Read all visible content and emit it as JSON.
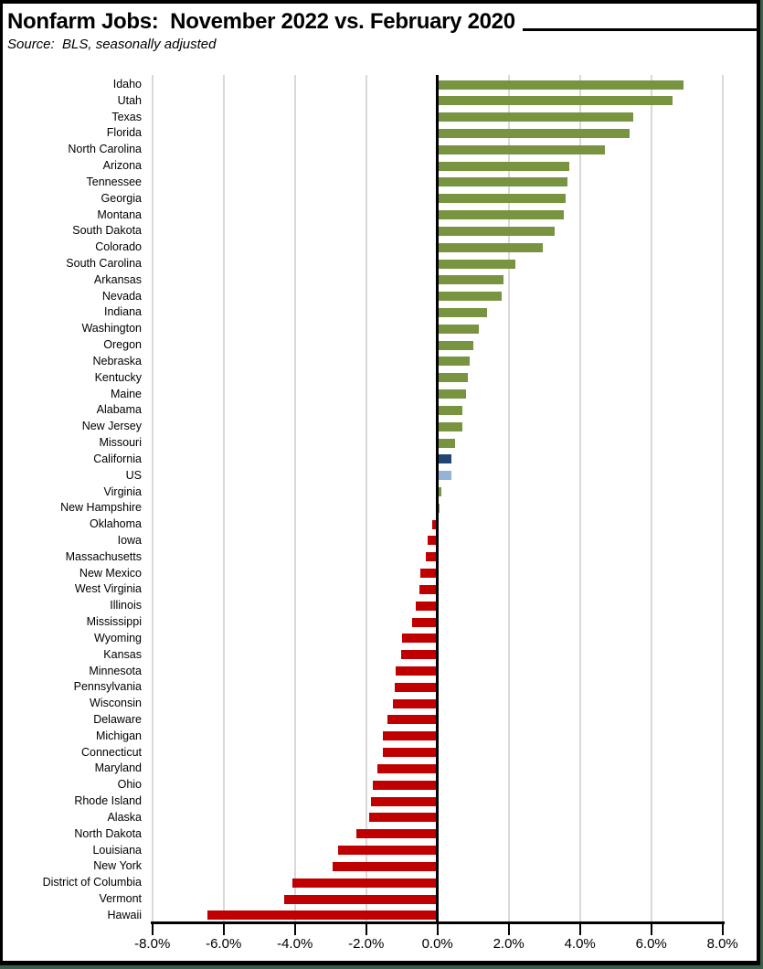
{
  "header": {
    "title": "Nonfarm Jobs:  November 2022 vs. February 2020",
    "source": "Source:  BLS, seasonally adjusted"
  },
  "frame": {
    "border_color": "#000000",
    "edge_color": "#39604A"
  },
  "chart_data": {
    "type": "bar",
    "orientation": "horizontal",
    "title": "Nonfarm Jobs:  November 2022 vs. February 2020",
    "subtitle": "Source:  BLS, seasonally adjusted",
    "unit": "percent change",
    "axis": {
      "min": -8,
      "max": 8,
      "tick_step": 2,
      "tick_labels": [
        "-8.0%",
        "-6.0%",
        "-4.0%",
        "-2.0%",
        "0.0%",
        "2.0%",
        "4.0%",
        "6.0%",
        "8.0%"
      ],
      "grid": true
    },
    "colors": {
      "positive": "#789440",
      "negative": "#C00000",
      "gridline": "#D9D9D9",
      "axis": "#000000"
    },
    "items": [
      {
        "label": "Idaho",
        "value": 6.9
      },
      {
        "label": "Utah",
        "value": 6.6
      },
      {
        "label": "Texas",
        "value": 5.5
      },
      {
        "label": "Florida",
        "value": 5.4
      },
      {
        "label": "North Carolina",
        "value": 4.7
      },
      {
        "label": "Arizona",
        "value": 3.7
      },
      {
        "label": "Tennessee",
        "value": 3.65
      },
      {
        "label": "Georgia",
        "value": 3.6
      },
      {
        "label": "Montana",
        "value": 3.55
      },
      {
        "label": "South Dakota",
        "value": 3.3
      },
      {
        "label": "Colorado",
        "value": 2.95
      },
      {
        "label": "South Carolina",
        "value": 2.2
      },
      {
        "label": "Arkansas",
        "value": 1.85
      },
      {
        "label": "Nevada",
        "value": 1.8
      },
      {
        "label": "Indiana",
        "value": 1.4
      },
      {
        "label": "Washington",
        "value": 1.15
      },
      {
        "label": "Oregon",
        "value": 1.0
      },
      {
        "label": "Nebraska",
        "value": 0.9
      },
      {
        "label": "Kentucky",
        "value": 0.85
      },
      {
        "label": "Maine",
        "value": 0.8
      },
      {
        "label": "Alabama",
        "value": 0.7
      },
      {
        "label": "New Jersey",
        "value": 0.7
      },
      {
        "label": "Missouri",
        "value": 0.5
      },
      {
        "label": "California",
        "value": 0.4,
        "color": "#1F4571"
      },
      {
        "label": "US",
        "value": 0.38,
        "color": "#95B3D7"
      },
      {
        "label": "Virginia",
        "value": 0.1
      },
      {
        "label": "New Hampshire",
        "value": 0.05
      },
      {
        "label": "Oklahoma",
        "value": -0.15
      },
      {
        "label": "Iowa",
        "value": -0.28
      },
      {
        "label": "Massachusetts",
        "value": -0.32
      },
      {
        "label": "New Mexico",
        "value": -0.47
      },
      {
        "label": "West Virginia",
        "value": -0.5
      },
      {
        "label": "Illinois",
        "value": -0.62
      },
      {
        "label": "Mississippi",
        "value": -0.7
      },
      {
        "label": "Wyoming",
        "value": -1.0
      },
      {
        "label": "Kansas",
        "value": -1.03
      },
      {
        "label": "Minnesota",
        "value": -1.18
      },
      {
        "label": "Pennsylvania",
        "value": -1.21
      },
      {
        "label": "Wisconsin",
        "value": -1.24
      },
      {
        "label": "Delaware",
        "value": -1.4
      },
      {
        "label": "Michigan",
        "value": -1.54
      },
      {
        "label": "Connecticut",
        "value": -1.54
      },
      {
        "label": "Maryland",
        "value": -1.68
      },
      {
        "label": "Ohio",
        "value": -1.82
      },
      {
        "label": "Rhode Island",
        "value": -1.87
      },
      {
        "label": "Alaska",
        "value": -1.91
      },
      {
        "label": "North Dakota",
        "value": -2.27
      },
      {
        "label": "Louisiana",
        "value": -2.78
      },
      {
        "label": "New York",
        "value": -2.94
      },
      {
        "label": "District of Columbia",
        "value": -4.07
      },
      {
        "label": "Vermont",
        "value": -4.3
      },
      {
        "label": "Hawaii",
        "value": -6.45
      }
    ]
  }
}
